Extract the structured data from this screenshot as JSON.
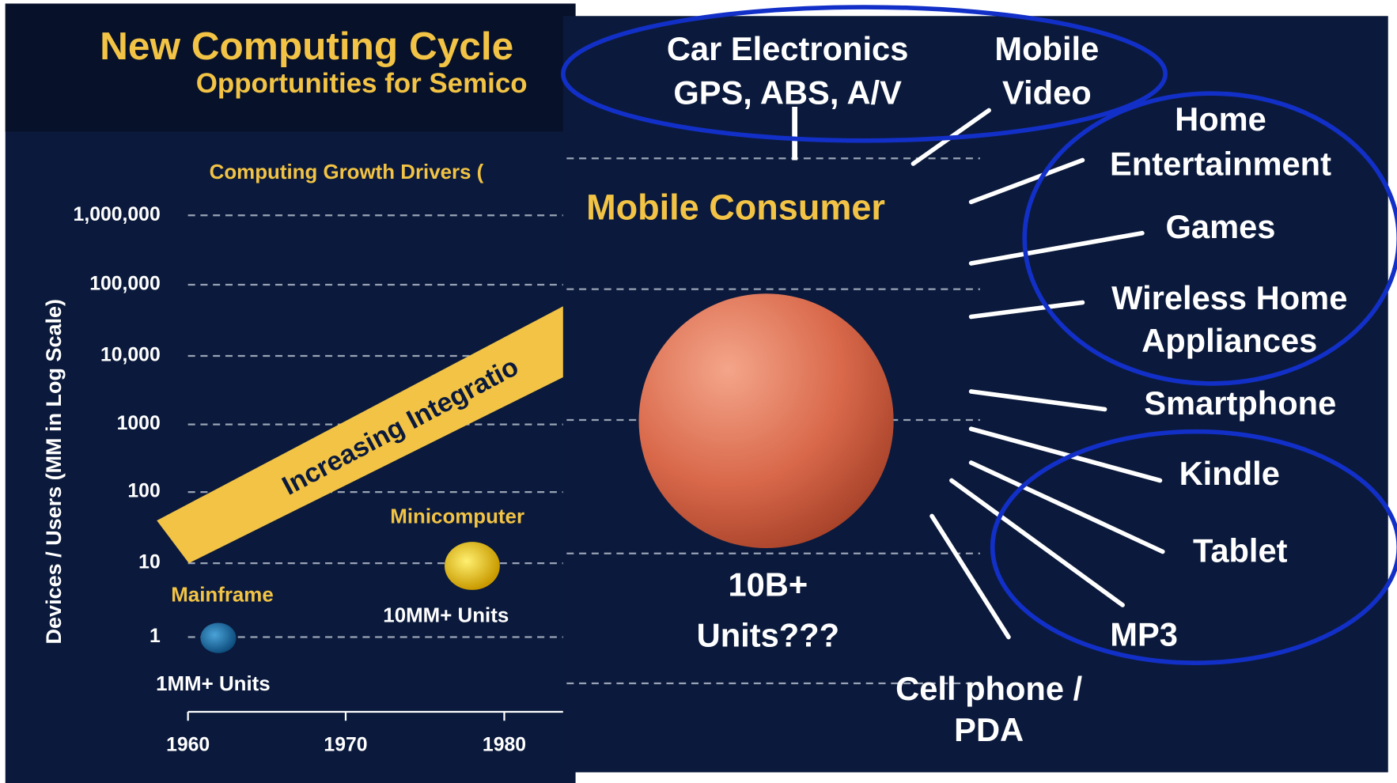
{
  "slide": {
    "title": "New Computing Cycle",
    "subtitle": "Opportunities for Semico",
    "chart_title": "Computing Growth Drivers (",
    "y_axis_label": "Devices / Users (MM in Log Scale)",
    "y_ticks": [
      "1,000,000",
      "100,000",
      "10,000",
      "1000",
      "100",
      "10",
      "1"
    ],
    "x_ticks": [
      "1960",
      "1970",
      "1980"
    ],
    "band_label": "Increasing Integratio",
    "nodes": [
      {
        "label": "Mainframe",
        "units": "1MM+ Units"
      },
      {
        "label": "Minicomputer",
        "units": "10MM+ Units"
      }
    ]
  },
  "overlay": {
    "top_labels": [
      [
        "Car Electronics",
        "GPS, ABS, A/V"
      ],
      [
        "Mobile",
        "Video"
      ]
    ],
    "segment_label": "Mobile Consumer",
    "sphere_label": [
      "10B+",
      "Units???"
    ],
    "devices": [
      [
        "Home",
        "Entertainment"
      ],
      [
        "Games"
      ],
      [
        "Wireless Home",
        "Appliances"
      ],
      [
        "Smartphone"
      ],
      [
        "Kindle"
      ],
      [
        "Tablet"
      ],
      [
        "MP3"
      ],
      [
        "Cell phone /",
        "PDA"
      ]
    ]
  }
}
